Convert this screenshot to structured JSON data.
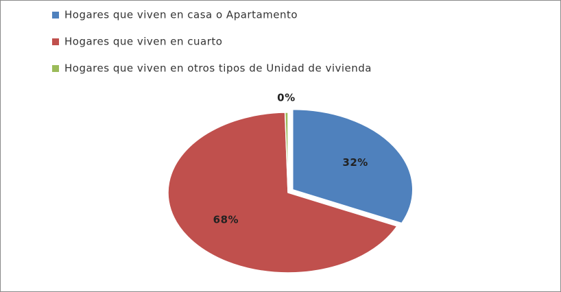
{
  "chart_data": {
    "type": "pie",
    "categories": [
      "Hogares que viven en casa o Apartamento",
      "Hogares que viven en cuarto",
      "Hogares que viven en otros tipos de Unidad de vivienda"
    ],
    "values": [
      32,
      68,
      0.4
    ],
    "value_labels": [
      "32%",
      "68%",
      "0%"
    ],
    "colors": [
      "#4f81bd",
      "#c0504d",
      "#9bbb59"
    ],
    "legend": "top-left"
  }
}
